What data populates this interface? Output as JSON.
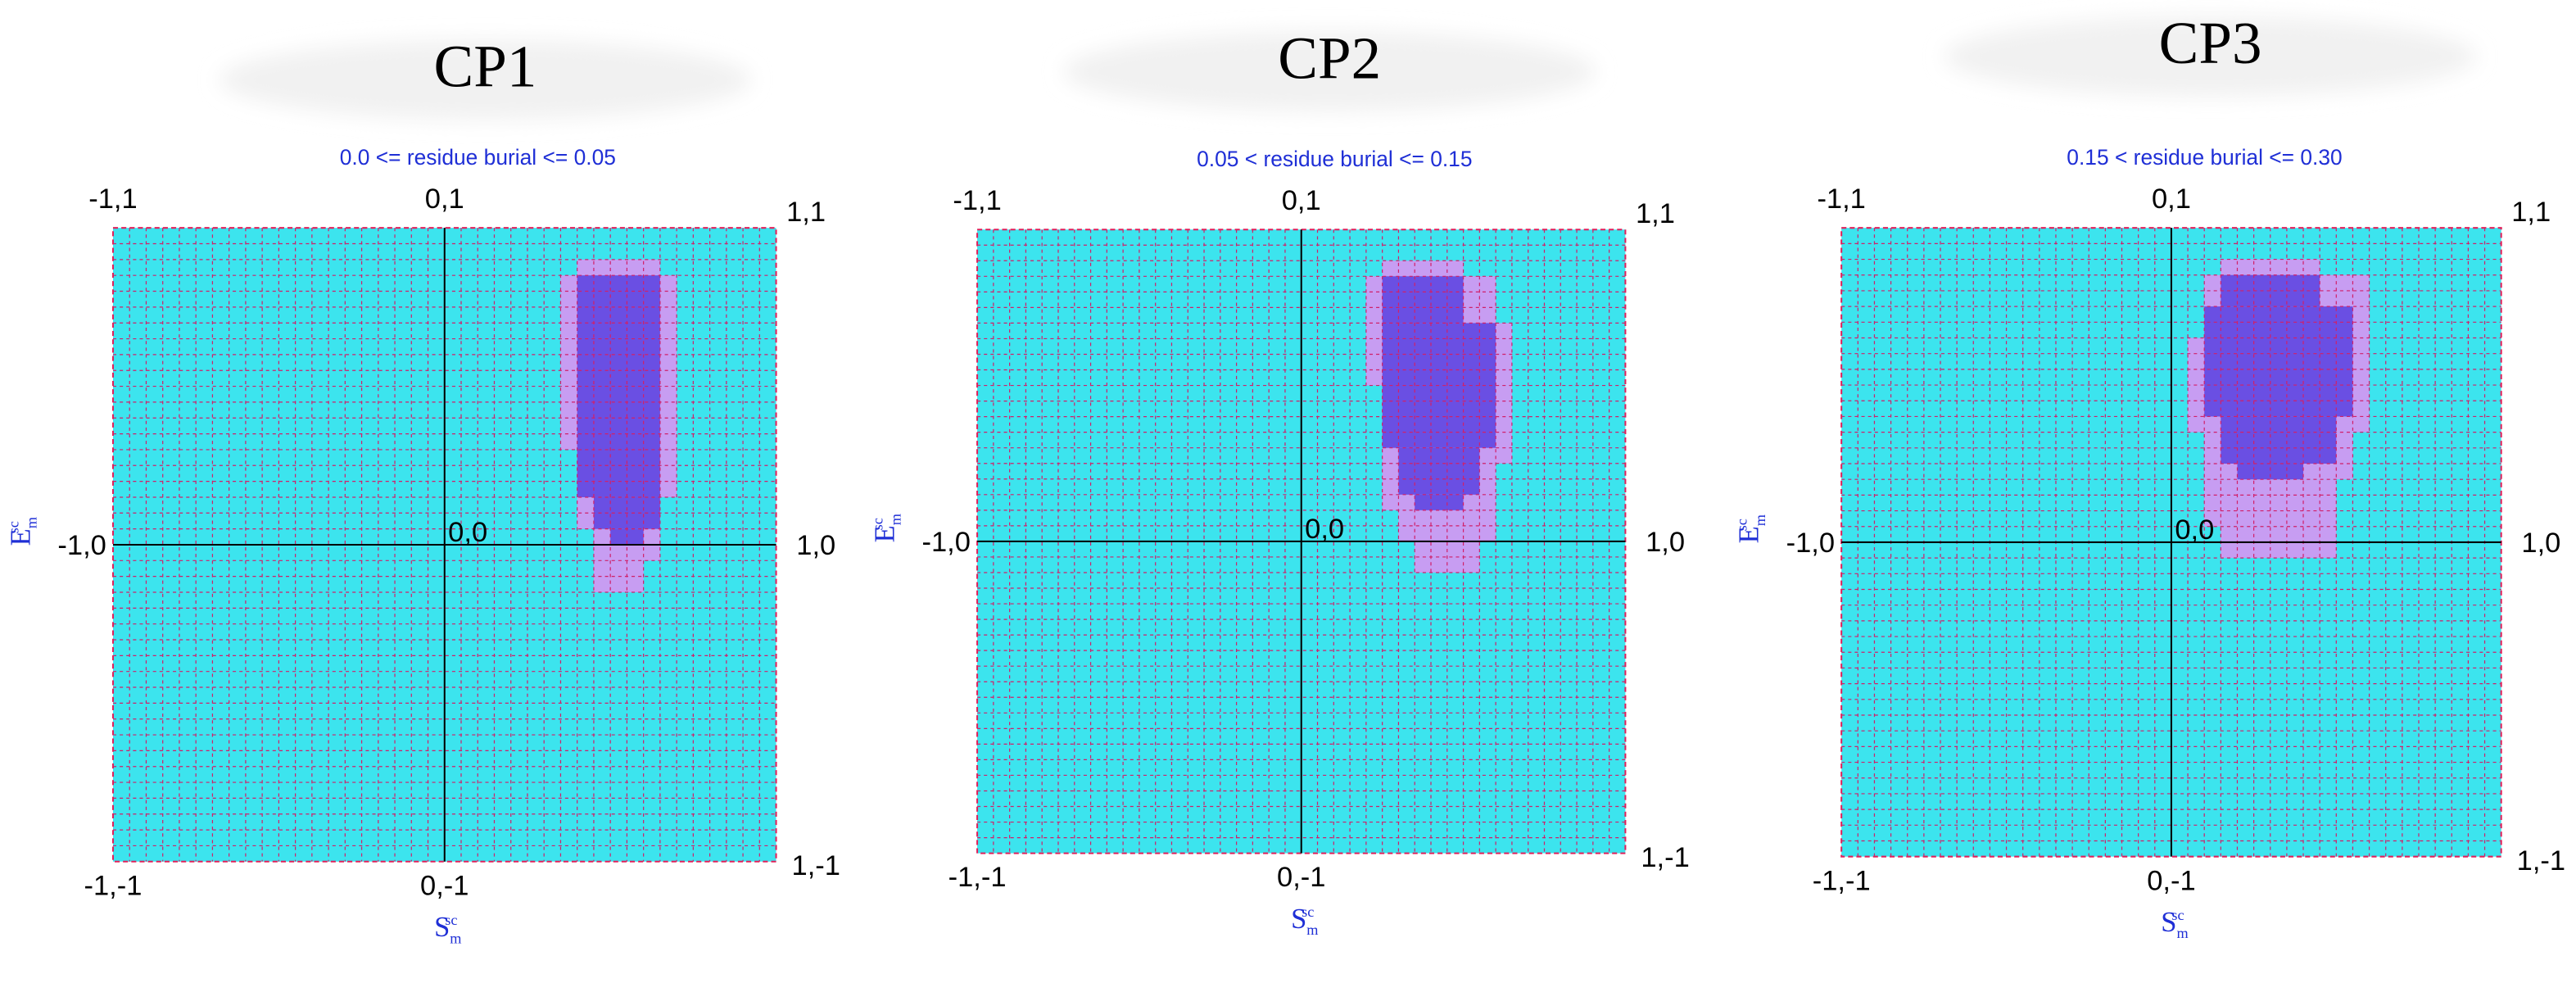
{
  "panels": [
    {
      "title": "CP1",
      "subtitle": "0.0 <= residue burial <= 0.05",
      "corners": {
        "top_left": "-1,1",
        "top_center": "0,1",
        "top_right": "1,1",
        "middle_left": "-1,0",
        "center": "0,0",
        "middle_right": "1,0",
        "bottom_left": "-1,-1",
        "bottom_center": "0,-1",
        "bottom_right": "1,-1"
      },
      "x_label": {
        "base": "S",
        "sub": "m",
        "sup": "sc"
      },
      "y_label": {
        "base": "E",
        "sub": "m",
        "sup": "sc"
      },
      "grid_cells": 40,
      "light_region": [
        [
          2,
          2,
          28,
          32
        ],
        [
          3,
          13,
          27,
          33
        ],
        [
          14,
          16,
          28,
          33
        ],
        [
          17,
          18,
          28,
          32
        ],
        [
          19,
          20,
          29,
          32
        ],
        [
          21,
          22,
          29,
          31
        ]
      ],
      "dark_region": [
        [
          3,
          16,
          28,
          32
        ],
        [
          17,
          18,
          29,
          32
        ],
        [
          19,
          19,
          30,
          31
        ]
      ]
    },
    {
      "title": "CP2",
      "subtitle": "0.05 < residue burial <= 0.15",
      "corners": {
        "top_left": "-1,1",
        "top_center": "0,1",
        "top_right": "1,1",
        "middle_left": "-1,0",
        "center": "0,0",
        "middle_right": "1,0",
        "bottom_left": "-1,-1",
        "bottom_center": "0,-1",
        "bottom_right": "1,-1"
      },
      "x_label": {
        "base": "S",
        "sub": "m",
        "sup": "sc"
      },
      "y_label": {
        "base": "E",
        "sub": "m",
        "sup": "sc"
      },
      "grid_cells": 40,
      "light_region": [
        [
          2,
          2,
          25,
          29
        ],
        [
          3,
          5,
          24,
          31
        ],
        [
          6,
          9,
          24,
          32
        ],
        [
          10,
          14,
          25,
          32
        ],
        [
          15,
          17,
          25,
          31
        ],
        [
          18,
          19,
          26,
          31
        ],
        [
          20,
          21,
          27,
          30
        ]
      ],
      "dark_region": [
        [
          3,
          5,
          25,
          29
        ],
        [
          6,
          13,
          25,
          31
        ],
        [
          14,
          16,
          26,
          30
        ],
        [
          17,
          17,
          27,
          29
        ]
      ]
    },
    {
      "title": "CP3",
      "subtitle": "0.15 < residue burial <= 0.30",
      "corners": {
        "top_left": "-1,1",
        "top_center": "0,1",
        "top_right": "1,1",
        "middle_left": "-1,0",
        "center": "0,0",
        "middle_right": "1,0",
        "bottom_left": "-1,-1",
        "bottom_center": "0,-1",
        "bottom_right": "1,-1"
      },
      "x_label": {
        "base": "S",
        "sub": "m",
        "sup": "sc"
      },
      "y_label": {
        "base": "E",
        "sub": "m",
        "sup": "sc"
      },
      "grid_cells": 40,
      "light_region": [
        [
          2,
          2,
          23,
          28
        ],
        [
          3,
          6,
          22,
          31
        ],
        [
          7,
          12,
          21,
          31
        ],
        [
          13,
          15,
          22,
          30
        ],
        [
          16,
          18,
          22,
          29
        ],
        [
          19,
          20,
          23,
          29
        ]
      ],
      "dark_region": [
        [
          3,
          4,
          23,
          28
        ],
        [
          5,
          11,
          22,
          30
        ],
        [
          12,
          14,
          23,
          29
        ],
        [
          15,
          15,
          24,
          27
        ]
      ]
    }
  ]
}
